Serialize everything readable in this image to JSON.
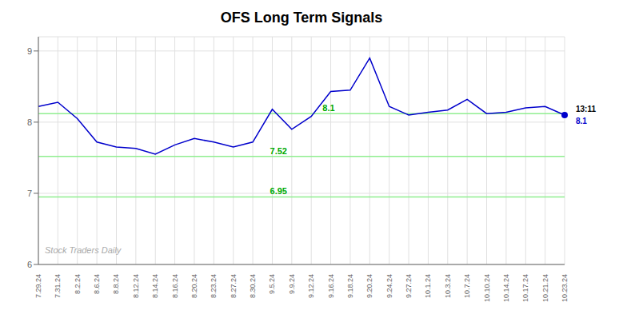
{
  "chart_data": {
    "type": "line",
    "title": "OFS Long Term Signals",
    "categories": [
      "7.29.24",
      "7.31.24",
      "8.2.24",
      "8.6.24",
      "8.8.24",
      "8.12.24",
      "8.14.24",
      "8.16.24",
      "8.20.24",
      "8.23.24",
      "8.27.24",
      "8.30.24",
      "9.5.24",
      "9.9.24",
      "9.12.24",
      "9.16.24",
      "9.18.24",
      "9.20.24",
      "9.24.24",
      "9.27.24",
      "10.1.24",
      "10.3.24",
      "10.7.24",
      "10.10.24",
      "10.14.24",
      "10.17.24",
      "10.21.24",
      "10.23.24"
    ],
    "values": [
      8.22,
      8.28,
      8.05,
      7.72,
      7.65,
      7.63,
      7.55,
      7.68,
      7.77,
      7.72,
      7.65,
      7.72,
      8.18,
      7.9,
      8.08,
      8.43,
      8.45,
      8.9,
      8.22,
      8.1,
      8.14,
      8.17,
      8.32,
      8.12,
      8.14,
      8.2,
      8.22,
      8.1
    ],
    "color": "#0000cc",
    "ylim": [
      6.0,
      9.2
    ],
    "yticks": [
      6,
      7,
      8,
      9
    ],
    "grid": true,
    "hlines": [
      {
        "value": 8.12,
        "label": "8.1",
        "color": "#90ee90",
        "label_color": "#00aa00"
      },
      {
        "value": 7.52,
        "label": "7.52",
        "color": "#90ee90",
        "label_color": "#00aa00"
      },
      {
        "value": 6.95,
        "label": "6.95",
        "color": "#90ee90",
        "label_color": "#00aa00"
      }
    ],
    "last_point": {
      "label": "13:11",
      "value_label": "8.1"
    },
    "watermark": "Stock Traders Daily"
  }
}
